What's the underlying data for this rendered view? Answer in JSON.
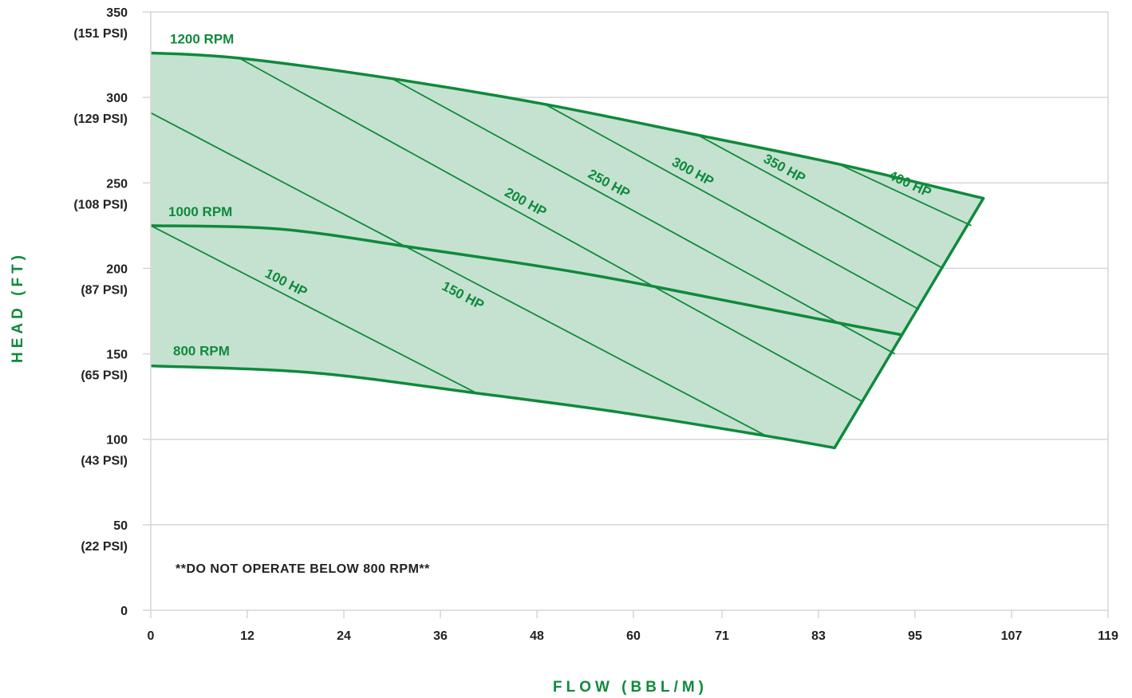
{
  "chart_data": {
    "type": "line",
    "title": "",
    "xlabel": "FLOW (BBL/M)",
    "ylabel": "HEAD (FT)",
    "xlim": [
      0,
      119
    ],
    "ylim": [
      0,
      350
    ],
    "x_ticks": [
      {
        "value": 0,
        "label": "0"
      },
      {
        "value": 12,
        "label": "12"
      },
      {
        "value": 24,
        "label": "24"
      },
      {
        "value": 36,
        "label": "36"
      },
      {
        "value": 48,
        "label": "48"
      },
      {
        "value": 60,
        "label": "60"
      },
      {
        "value": 71,
        "label": "71"
      },
      {
        "value": 83,
        "label": "83"
      },
      {
        "value": 95,
        "label": "95"
      },
      {
        "value": 107,
        "label": "107"
      },
      {
        "value": 119,
        "label": "119"
      }
    ],
    "y_ticks": [
      {
        "value": 0,
        "label": "0",
        "sublabel": ""
      },
      {
        "value": 50,
        "label": "50",
        "sublabel": "(22 PSI)"
      },
      {
        "value": 100,
        "label": "100",
        "sublabel": "(43 PSI)"
      },
      {
        "value": 150,
        "label": "150",
        "sublabel": "(65 PSI)"
      },
      {
        "value": 200,
        "label": "200",
        "sublabel": "(87 PSI)"
      },
      {
        "value": 250,
        "label": "250",
        "sublabel": "(108 PSI)"
      },
      {
        "value": 300,
        "label": "300",
        "sublabel": "(129 PSI)"
      },
      {
        "value": 350,
        "label": "350",
        "sublabel": "(151 PSI)"
      }
    ],
    "grid": "horizontal",
    "speed_curves": [
      {
        "name": "1200 RPM",
        "x": [
          0,
          11,
          30,
          49,
          68,
          85.5,
          103.5
        ],
        "y": [
          326,
          323,
          311,
          296,
          278,
          261,
          241
        ]
      },
      {
        "name": "1000 RPM",
        "x": [
          0,
          16,
          33,
          50,
          63,
          84.5,
          93.5
        ],
        "y": [
          225,
          223,
          212,
          200,
          189,
          169,
          161
        ]
      },
      {
        "name": "800 RPM",
        "x": [
          0,
          20,
          40.5,
          58,
          76.5,
          85
        ],
        "y": [
          143,
          139,
          127,
          116,
          102,
          95
        ]
      }
    ],
    "envelope_edge": {
      "x": [
        85,
        103.5
      ],
      "y": [
        95,
        241
      ]
    },
    "power_lines": [
      {
        "name": "100 HP",
        "x": [
          0,
          40.5
        ],
        "y": [
          225,
          127
        ]
      },
      {
        "name": "150 HP",
        "x": [
          0,
          76.5
        ],
        "y": [
          291,
          102
        ]
      },
      {
        "name": "200 HP",
        "x": [
          11,
          88.5
        ],
        "y": [
          323,
          122
        ]
      },
      {
        "name": "250 HP",
        "x": [
          30,
          92.5
        ],
        "y": [
          311,
          150
        ]
      },
      {
        "name": "300 HP",
        "x": [
          49,
          95.5
        ],
        "y": [
          296,
          176
        ]
      },
      {
        "name": "350 HP",
        "x": [
          68,
          98.5
        ],
        "y": [
          278,
          200
        ]
      },
      {
        "name": "400 HP",
        "x": [
          85.5,
          102
        ],
        "y": [
          261,
          225
        ]
      }
    ],
    "note": "**DO NOT OPERATE BELOW 800 RPM**",
    "colors": {
      "brand_green": "#0f8a3c",
      "fill_green": "#c5e2d0",
      "grid": "#d6d6d6",
      "axis_text": "#222222"
    }
  }
}
